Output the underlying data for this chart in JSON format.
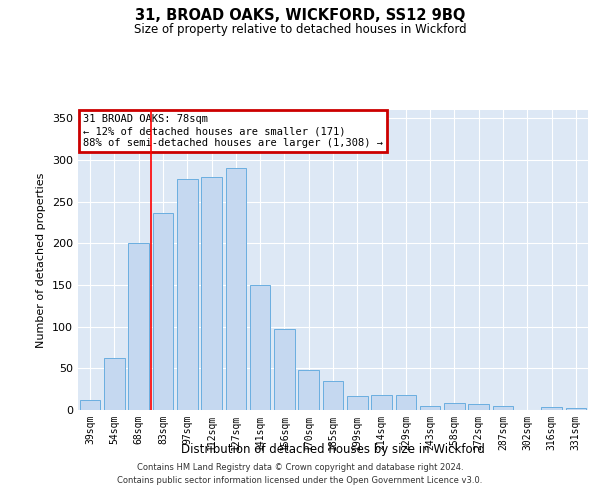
{
  "title": "31, BROAD OAKS, WICKFORD, SS12 9BQ",
  "subtitle": "Size of property relative to detached houses in Wickford",
  "xlabel": "Distribution of detached houses by size in Wickford",
  "ylabel": "Number of detached properties",
  "categories": [
    "39sqm",
    "54sqm",
    "68sqm",
    "83sqm",
    "97sqm",
    "112sqm",
    "127sqm",
    "141sqm",
    "156sqm",
    "170sqm",
    "185sqm",
    "199sqm",
    "214sqm",
    "229sqm",
    "243sqm",
    "258sqm",
    "272sqm",
    "287sqm",
    "302sqm",
    "316sqm",
    "331sqm"
  ],
  "values": [
    12,
    63,
    200,
    237,
    277,
    280,
    290,
    150,
    97,
    48,
    35,
    17,
    18,
    18,
    5,
    8,
    7,
    5,
    0,
    4,
    3
  ],
  "bar_color": "#c5d8f0",
  "bar_edge_color": "#6aaee0",
  "background_color": "#dde8f5",
  "grid_color": "#ffffff",
  "red_line_x": 2.5,
  "annotation_text": "31 BROAD OAKS: 78sqm\n← 12% of detached houses are smaller (171)\n88% of semi-detached houses are larger (1,308) →",
  "annotation_box_color": "#cc0000",
  "ylim": [
    0,
    360
  ],
  "yticks": [
    0,
    50,
    100,
    150,
    200,
    250,
    300,
    350
  ],
  "footer1": "Contains HM Land Registry data © Crown copyright and database right 2024.",
  "footer2": "Contains public sector information licensed under the Open Government Licence v3.0."
}
